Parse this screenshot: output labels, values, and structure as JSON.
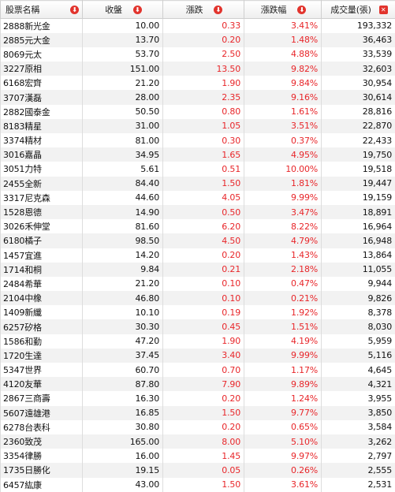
{
  "headers": {
    "name": "股票名稱",
    "close": "收盤",
    "change": "漲跌",
    "change_pct": "漲跌幅",
    "volume": "成交量(張)"
  },
  "sort_icons": {
    "name": "sort-down",
    "close": "sort-down",
    "change": "sort-down",
    "change_pct": "sort-down",
    "volume": "close"
  },
  "colors": {
    "up": "#e8262a",
    "icon": "#e2342d"
  },
  "rows": [
    {
      "name": "2888新光金",
      "close": "10.00",
      "change": "0.33",
      "pct": "3.41%",
      "volume": "193,332"
    },
    {
      "name": "2885元大金",
      "close": "13.70",
      "change": "0.20",
      "pct": "1.48%",
      "volume": "36,463"
    },
    {
      "name": "8069元太",
      "close": "53.70",
      "change": "2.50",
      "pct": "4.88%",
      "volume": "33,539"
    },
    {
      "name": "3227原相",
      "close": "151.00",
      "change": "13.50",
      "pct": "9.82%",
      "volume": "32,603"
    },
    {
      "name": "6168宏齊",
      "close": "21.20",
      "change": "1.90",
      "pct": "9.84%",
      "volume": "30,954"
    },
    {
      "name": "3707漢磊",
      "close": "28.00",
      "change": "2.35",
      "pct": "9.16%",
      "volume": "30,614"
    },
    {
      "name": "2882國泰金",
      "close": "50.50",
      "change": "0.80",
      "pct": "1.61%",
      "volume": "28,816"
    },
    {
      "name": "8183精星",
      "close": "31.00",
      "change": "1.05",
      "pct": "3.51%",
      "volume": "22,870"
    },
    {
      "name": "3374精材",
      "close": "81.00",
      "change": "0.30",
      "pct": "0.37%",
      "volume": "22,433"
    },
    {
      "name": "3016嘉晶",
      "close": "34.95",
      "change": "1.65",
      "pct": "4.95%",
      "volume": "19,750"
    },
    {
      "name": "3051力特",
      "close": "5.61",
      "change": "0.51",
      "pct": "10.00%",
      "volume": "19,518"
    },
    {
      "name": "2455全新",
      "close": "84.40",
      "change": "1.50",
      "pct": "1.81%",
      "volume": "19,447"
    },
    {
      "name": "3317尼克森",
      "close": "44.60",
      "change": "4.05",
      "pct": "9.99%",
      "volume": "19,159"
    },
    {
      "name": "1528恩德",
      "close": "14.90",
      "change": "0.50",
      "pct": "3.47%",
      "volume": "18,891"
    },
    {
      "name": "3026禾伸堂",
      "close": "81.60",
      "change": "6.20",
      "pct": "8.22%",
      "volume": "16,964"
    },
    {
      "name": "6180橘子",
      "close": "98.50",
      "change": "4.50",
      "pct": "4.79%",
      "volume": "16,948"
    },
    {
      "name": "1457宜進",
      "close": "14.20",
      "change": "0.20",
      "pct": "1.43%",
      "volume": "13,864"
    },
    {
      "name": "1714和桐",
      "close": "9.84",
      "change": "0.21",
      "pct": "2.18%",
      "volume": "11,055"
    },
    {
      "name": "2484希華",
      "close": "21.20",
      "change": "0.10",
      "pct": "0.47%",
      "volume": "9,944"
    },
    {
      "name": "2104中橡",
      "close": "46.80",
      "change": "0.10",
      "pct": "0.21%",
      "volume": "9,826"
    },
    {
      "name": "1409新纖",
      "close": "10.10",
      "change": "0.19",
      "pct": "1.92%",
      "volume": "8,378"
    },
    {
      "name": "6257矽格",
      "close": "30.30",
      "change": "0.45",
      "pct": "1.51%",
      "volume": "8,030"
    },
    {
      "name": "1586和勤",
      "close": "47.20",
      "change": "1.90",
      "pct": "4.19%",
      "volume": "5,959"
    },
    {
      "name": "1720生達",
      "close": "37.45",
      "change": "3.40",
      "pct": "9.99%",
      "volume": "5,116"
    },
    {
      "name": "5347世界",
      "close": "60.70",
      "change": "0.70",
      "pct": "1.17%",
      "volume": "4,645"
    },
    {
      "name": "4120友華",
      "close": "87.80",
      "change": "7.90",
      "pct": "9.89%",
      "volume": "4,321"
    },
    {
      "name": "2867三商壽",
      "close": "16.30",
      "change": "0.20",
      "pct": "1.24%",
      "volume": "3,955"
    },
    {
      "name": "5607遠雄港",
      "close": "16.85",
      "change": "1.50",
      "pct": "9.77%",
      "volume": "3,850"
    },
    {
      "name": "6278台表科",
      "close": "30.80",
      "change": "0.20",
      "pct": "0.65%",
      "volume": "3,584"
    },
    {
      "name": "2360致茂",
      "close": "165.00",
      "change": "8.00",
      "pct": "5.10%",
      "volume": "3,262"
    },
    {
      "name": "3354律勝",
      "close": "16.00",
      "change": "1.45",
      "pct": "9.97%",
      "volume": "2,797"
    },
    {
      "name": "1735日勝化",
      "close": "19.15",
      "change": "0.05",
      "pct": "0.26%",
      "volume": "2,555"
    },
    {
      "name": "6457紘康",
      "close": "43.00",
      "change": "1.50",
      "pct": "3.61%",
      "volume": "2,531"
    }
  ]
}
